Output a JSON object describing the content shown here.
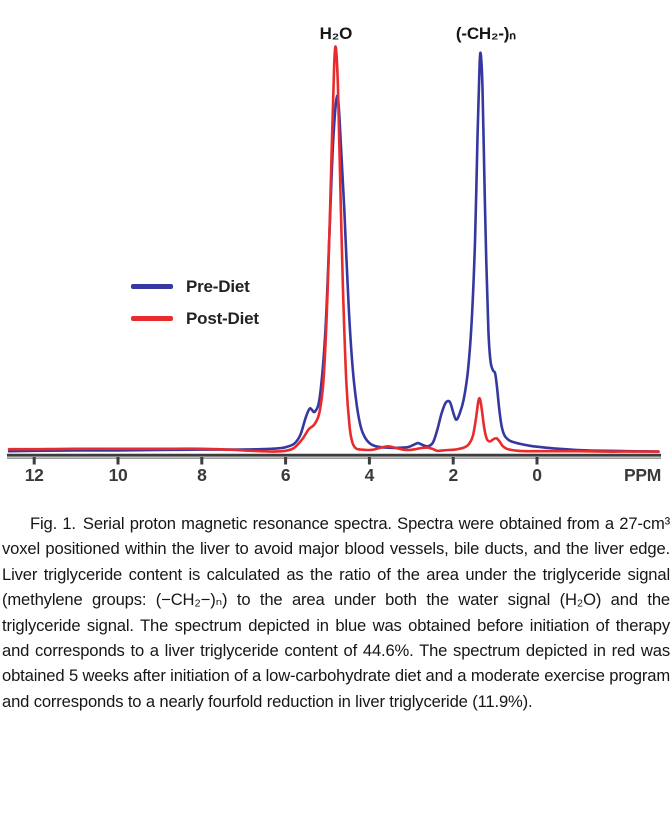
{
  "caption": {
    "label": "Fig. 1.",
    "text": "Serial proton magnetic resonance spectra. Spectra were obtained from a 27-cm³ voxel positioned within the liver to avoid major blood vessels, bile ducts, and the liver edge. Liver triglyceride content is calculated as the ratio of the area under the triglyceride signal (methylene groups: (−CH₂−)ₙ) to the area under both the water signal (H₂O) and the triglyceride signal. The spectrum depicted in blue was obtained before initiation of therapy and corresponds to a liver triglyceride content of 44.6%. The spectrum depicted in red was obtained 5 weeks after initiation of a low-carbohydrate diet and a moderate exercise program and corresponds to a nearly fourfold reduction in liver triglyceride (11.9%)."
  },
  "chart_data": {
    "type": "line",
    "title": "Serial proton magnetic resonance spectra",
    "xlabel": "PPM",
    "x_axis_direction": "reversed (chemical shift in ppm, decreasing left to right)",
    "x_ticks": [
      12,
      10,
      8,
      6,
      4,
      2,
      0
    ],
    "x_range": [
      12.6,
      -3.0
    ],
    "ylabel": "",
    "y_units": "relative signal intensity (arbitrary units; 1.0 = post-diet water peak apex)",
    "grid": false,
    "legend_position": "upper left",
    "axis_color": "#3d3d3d",
    "peak_annotations": [
      {
        "text": "H₂O",
        "ppm": 4.8
      },
      {
        "text": "(-CH₂-)ₙ",
        "ppm": 1.22
      }
    ],
    "series": [
      {
        "name": "Pre-Diet",
        "color": "#3438A0",
        "points": [
          [
            12.6,
            0.002
          ],
          [
            12,
            0.003
          ],
          [
            11,
            0.004
          ],
          [
            10,
            0.004
          ],
          [
            9,
            0.005
          ],
          [
            8,
            0.006
          ],
          [
            7.2,
            0.006
          ],
          [
            6.6,
            0.007
          ],
          [
            6.2,
            0.009
          ],
          [
            6.0,
            0.012
          ],
          [
            5.8,
            0.02
          ],
          [
            5.65,
            0.042
          ],
          [
            5.52,
            0.085
          ],
          [
            5.42,
            0.108
          ],
          [
            5.3,
            0.1
          ],
          [
            5.18,
            0.14
          ],
          [
            5.05,
            0.3
          ],
          [
            4.95,
            0.55
          ],
          [
            4.86,
            0.78
          ],
          [
            4.76,
            0.882
          ],
          [
            4.68,
            0.76
          ],
          [
            4.6,
            0.6
          ],
          [
            4.5,
            0.37
          ],
          [
            4.4,
            0.21
          ],
          [
            4.3,
            0.115
          ],
          [
            4.2,
            0.06
          ],
          [
            4.1,
            0.035
          ],
          [
            4.0,
            0.022
          ],
          [
            3.9,
            0.016
          ],
          [
            3.8,
            0.013
          ],
          [
            3.6,
            0.011
          ],
          [
            3.4,
            0.01
          ],
          [
            3.2,
            0.011
          ],
          [
            3.05,
            0.013
          ],
          [
            2.92,
            0.019
          ],
          [
            2.84,
            0.022
          ],
          [
            2.72,
            0.017
          ],
          [
            2.6,
            0.014
          ],
          [
            2.48,
            0.024
          ],
          [
            2.38,
            0.055
          ],
          [
            2.28,
            0.095
          ],
          [
            2.18,
            0.122
          ],
          [
            2.08,
            0.124
          ],
          [
            2.0,
            0.098
          ],
          [
            1.93,
            0.08
          ],
          [
            1.85,
            0.094
          ],
          [
            1.75,
            0.13
          ],
          [
            1.65,
            0.2
          ],
          [
            1.56,
            0.32
          ],
          [
            1.48,
            0.52
          ],
          [
            1.42,
            0.78
          ],
          [
            1.37,
            0.96
          ],
          [
            1.34,
            0.982
          ],
          [
            1.3,
            0.9
          ],
          [
            1.26,
            0.7
          ],
          [
            1.21,
            0.47
          ],
          [
            1.16,
            0.3
          ],
          [
            1.11,
            0.225
          ],
          [
            1.05,
            0.202
          ],
          [
            1.0,
            0.195
          ],
          [
            0.96,
            0.165
          ],
          [
            0.9,
            0.105
          ],
          [
            0.84,
            0.062
          ],
          [
            0.77,
            0.04
          ],
          [
            0.68,
            0.03
          ],
          [
            0.58,
            0.025
          ],
          [
            0.4,
            0.02
          ],
          [
            0.2,
            0.016
          ],
          [
            0,
            0.013
          ],
          [
            -0.4,
            0.009
          ],
          [
            -0.8,
            0.006
          ],
          [
            -1.2,
            0.004
          ],
          [
            -1.7,
            0.003
          ],
          [
            -2.2,
            0.002
          ],
          [
            -2.9,
            0.001
          ]
        ]
      },
      {
        "name": "Post-Diet",
        "color": "#E92B2C",
        "points": [
          [
            12.6,
            0.007
          ],
          [
            12,
            0.007
          ],
          [
            11,
            0.008
          ],
          [
            10,
            0.008
          ],
          [
            9,
            0.008
          ],
          [
            8,
            0.008
          ],
          [
            7.4,
            0.006
          ],
          [
            7.0,
            0.004
          ],
          [
            6.6,
            0.002
          ],
          [
            6.3,
            0.001
          ],
          [
            6.0,
            0.003
          ],
          [
            5.8,
            0.01
          ],
          [
            5.6,
            0.032
          ],
          [
            5.45,
            0.056
          ],
          [
            5.3,
            0.07
          ],
          [
            5.18,
            0.105
          ],
          [
            5.08,
            0.2
          ],
          [
            4.98,
            0.45
          ],
          [
            4.9,
            0.75
          ],
          [
            4.84,
            0.96
          ],
          [
            4.8,
            1.0
          ],
          [
            4.75,
            0.9
          ],
          [
            4.7,
            0.68
          ],
          [
            4.63,
            0.4
          ],
          [
            4.55,
            0.17
          ],
          [
            4.47,
            0.06
          ],
          [
            4.4,
            0.022
          ],
          [
            4.32,
            0.009
          ],
          [
            4.2,
            0.006
          ],
          [
            4.05,
            0.005
          ],
          [
            3.9,
            0.006
          ],
          [
            3.72,
            0.011
          ],
          [
            3.55,
            0.014
          ],
          [
            3.4,
            0.011
          ],
          [
            3.2,
            0.006
          ],
          [
            3.05,
            0.005
          ],
          [
            2.9,
            0.007
          ],
          [
            2.75,
            0.01
          ],
          [
            2.62,
            0.011
          ],
          [
            2.5,
            0.008
          ],
          [
            2.38,
            0.003
          ],
          [
            2.25,
            0.004
          ],
          [
            2.1,
            0.005
          ],
          [
            1.95,
            0.006
          ],
          [
            1.85,
            0.008
          ],
          [
            1.72,
            0.012
          ],
          [
            1.62,
            0.02
          ],
          [
            1.53,
            0.04
          ],
          [
            1.46,
            0.08
          ],
          [
            1.4,
            0.125
          ],
          [
            1.36,
            0.131
          ],
          [
            1.31,
            0.1
          ],
          [
            1.26,
            0.06
          ],
          [
            1.2,
            0.033
          ],
          [
            1.13,
            0.026
          ],
          [
            1.05,
            0.031
          ],
          [
            0.97,
            0.034
          ],
          [
            0.9,
            0.027
          ],
          [
            0.82,
            0.015
          ],
          [
            0.72,
            0.008
          ],
          [
            0.6,
            0.005
          ],
          [
            0.45,
            0.003
          ],
          [
            0.25,
            0.002
          ],
          [
            0,
            0.002
          ],
          [
            -0.5,
            0.002
          ],
          [
            -1.0,
            0.002
          ],
          [
            -1.6,
            0.001
          ],
          [
            -2.2,
            0.001
          ],
          [
            -2.9,
            0.001
          ]
        ]
      }
    ]
  }
}
